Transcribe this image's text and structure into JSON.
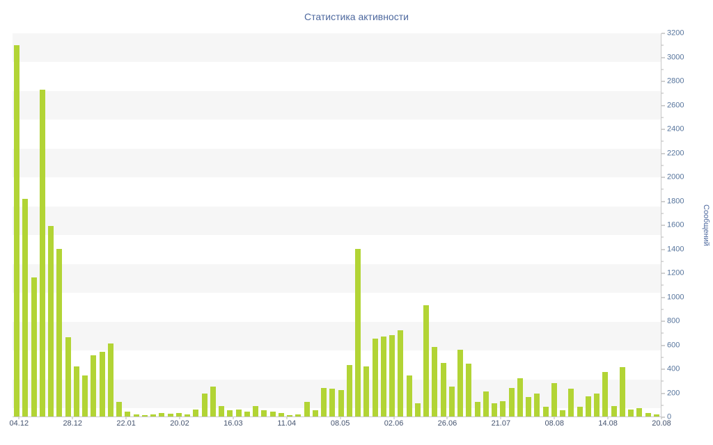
{
  "title": "Статистика активности",
  "chart_data": {
    "type": "bar",
    "title": "Статистика активности",
    "xlabel": "",
    "ylabel": "Сообщений",
    "ylim": [
      0,
      3200
    ],
    "y_tick_step": 200,
    "y_minor_step": 100,
    "grid": "striped-background",
    "legend": null,
    "bar_color": "#b2d435",
    "stripe_color": "#f6f6f6",
    "axis_color": "#c8c8c8",
    "title_text_color": "#4d689e",
    "y_tick_text_color": "#56749c",
    "x_tick_text_color": "#44536f",
    "x_tick_labels": [
      "04.12",
      "28.12",
      "22.01",
      "20.02",
      "16.03",
      "11.04",
      "08.05",
      "02.06",
      "26.06",
      "21.07",
      "08.08",
      "14.08",
      "20.08"
    ],
    "values": [
      3100,
      1820,
      1160,
      2730,
      1590,
      1400,
      660,
      420,
      340,
      510,
      540,
      610,
      120,
      40,
      20,
      10,
      15,
      30,
      25,
      30,
      20,
      60,
      190,
      250,
      90,
      50,
      60,
      40,
      90,
      50,
      40,
      30,
      10,
      20,
      120,
      50,
      240,
      230,
      220,
      430,
      1400,
      420,
      650,
      670,
      680,
      720,
      340,
      110,
      930,
      580,
      450,
      250,
      560,
      440,
      120,
      210,
      110,
      130,
      240,
      320,
      160,
      190,
      80,
      280,
      50,
      230,
      80,
      170,
      190,
      370,
      90,
      410,
      60,
      70,
      30,
      20
    ]
  }
}
